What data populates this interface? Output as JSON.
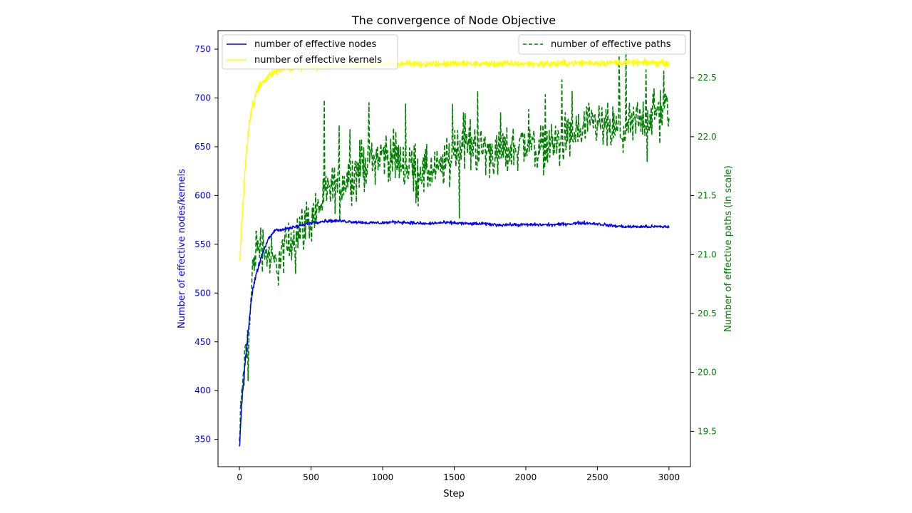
{
  "chart_data": {
    "type": "line",
    "title": "The convergence of Node Objective",
    "xlabel": "Step",
    "ylabel_left": "Number of effective nodes/kernels",
    "ylabel_right": "Number of effective paths (ln scale)",
    "xlim": [
      -150,
      3150
    ],
    "ylim_left": [
      322,
      769
    ],
    "ylim_right": [
      19.2,
      22.9
    ],
    "x_ticks": [
      0,
      500,
      1000,
      1500,
      2000,
      2500,
      3000
    ],
    "y_left_ticks": [
      350,
      400,
      450,
      500,
      550,
      600,
      650,
      700,
      750
    ],
    "y_right_ticks": [
      19.5,
      20.0,
      20.5,
      21.0,
      21.5,
      22.0,
      22.5
    ],
    "grid": false,
    "legend_left_position": "upper-left",
    "legend_right_position": "upper-right",
    "colors": {
      "nodes": "#0000ff",
      "kernels": "#ffff00",
      "paths": "#008000",
      "right_axis": "#008000",
      "left_axis": "#0000ff"
    },
    "series": [
      {
        "name": "number of effective nodes",
        "axis": "left",
        "style": "solid",
        "x": [
          0,
          20,
          40,
          60,
          80,
          100,
          130,
          160,
          200,
          250,
          300,
          400,
          500,
          600,
          700,
          800,
          900,
          1000,
          1100,
          1200,
          1300,
          1400,
          1500,
          1600,
          1700,
          1800,
          1900,
          2000,
          2100,
          2200,
          2300,
          2400,
          2500,
          2600,
          2700,
          2800,
          2900,
          3000
        ],
        "values": [
          342,
          395,
          430,
          460,
          490,
          510,
          525,
          540,
          555,
          565,
          565,
          568,
          572,
          574,
          574,
          573,
          572,
          572,
          573,
          572,
          571,
          572,
          572,
          571,
          571,
          570,
          570,
          570,
          570,
          570,
          571,
          572,
          571,
          569,
          568,
          568,
          568,
          568
        ],
        "noise": 2.5
      },
      {
        "name": "number of effective kernels",
        "axis": "left",
        "style": "solid",
        "x": [
          0,
          20,
          40,
          60,
          80,
          100,
          120,
          150,
          200,
          250,
          300,
          400,
          500,
          600,
          700,
          800,
          900,
          1000,
          1200,
          1400,
          1600,
          1800,
          2000,
          2200,
          2400,
          2600,
          2800,
          3000
        ],
        "values": [
          528,
          580,
          630,
          665,
          685,
          695,
          705,
          715,
          722,
          727,
          730,
          731,
          732,
          732,
          733,
          734,
          734,
          735,
          735,
          735,
          735,
          735,
          735,
          735,
          736,
          736,
          736,
          736
        ],
        "noise": 5
      },
      {
        "name": "number of effective paths",
        "axis": "right",
        "style": "dashed",
        "x": [
          0,
          20,
          40,
          60,
          80,
          100,
          150,
          200,
          250,
          300,
          400,
          500,
          600,
          700,
          800,
          900,
          1000,
          1100,
          1200,
          1300,
          1400,
          1500,
          1600,
          1700,
          1800,
          1900,
          2000,
          2100,
          2200,
          2300,
          2400,
          2500,
          2600,
          2700,
          2800,
          2900,
          3000
        ],
        "values": [
          19.4,
          19.9,
          20.1,
          20.2,
          20.6,
          21.0,
          21.1,
          21.0,
          20.9,
          21.0,
          21.2,
          21.3,
          21.5,
          21.6,
          21.7,
          21.8,
          21.85,
          21.8,
          21.75,
          21.7,
          21.7,
          21.9,
          21.95,
          21.9,
          21.85,
          21.9,
          21.95,
          21.9,
          21.95,
          22.0,
          22.05,
          22.1,
          22.05,
          22.05,
          22.15,
          22.2,
          22.25
        ],
        "noise": 0.3
      }
    ]
  }
}
